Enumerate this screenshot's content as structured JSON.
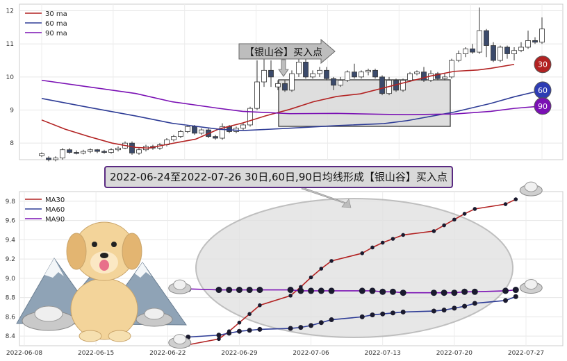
{
  "top_legend": [
    "30 ma",
    "60 ma",
    "90 ma"
  ],
  "bottom_legend": [
    "MA30",
    "MA60",
    "MA90"
  ],
  "buy_label": "【银山谷】买入点",
  "banner": "2022-06-24至2022-07-26 30日,60日,90日均线形成【银山谷】买入点",
  "badges": [
    "30",
    "60",
    "90"
  ],
  "colors": {
    "ma30": "#b22222",
    "ma60": "#2e3c96",
    "ma90": "#7a10b4",
    "badge30": "#b22222",
    "badge60": "#2e3cb4",
    "badge90": "#7a10b4"
  },
  "decorations": [
    "dog-icon",
    "mountain-icon",
    "silver-ingot-icon"
  ],
  "chart_data": [
    {
      "type": "candlestick",
      "ylim": [
        7.5,
        12.2
      ],
      "yticks": [
        8,
        9,
        10,
        11,
        12
      ],
      "grid": true,
      "legend": "top-left",
      "series": [
        {
          "name": "30 ma",
          "points": [
            [
              0,
              8.7
            ],
            [
              22,
              8.42
            ],
            [
              44,
              8.2
            ],
            [
              66,
              8.0
            ],
            [
              88,
              7.87
            ],
            [
              100,
              7.85
            ],
            [
              122,
              7.99
            ],
            [
              144,
              8.12
            ],
            [
              166,
              8.43
            ],
            [
              188,
              8.61
            ],
            [
              210,
              8.83
            ],
            [
              232,
              9.02
            ],
            [
              254,
              9.25
            ],
            [
              276,
              9.41
            ],
            [
              298,
              9.49
            ],
            [
              320,
              9.67
            ],
            [
              342,
              9.85
            ],
            [
              364,
              10.03
            ],
            [
              386,
              10.17
            ],
            [
              408,
              10.21
            ],
            [
              420,
              10.26
            ],
            [
              442,
              10.38
            ]
          ]
        },
        {
          "name": "60 ma",
          "points": [
            [
              0,
              9.35
            ],
            [
              44,
              9.08
            ],
            [
              88,
              8.82
            ],
            [
              122,
              8.6
            ],
            [
              166,
              8.42
            ],
            [
              188,
              8.38
            ],
            [
              232,
              8.45
            ],
            [
              276,
              8.53
            ],
            [
              320,
              8.59
            ],
            [
              342,
              8.68
            ],
            [
              386,
              8.94
            ],
            [
              420,
              9.2
            ],
            [
              442,
              9.4
            ],
            [
              468,
              9.6
            ]
          ]
        },
        {
          "name": "90 ma",
          "points": [
            [
              0,
              9.9
            ],
            [
              44,
              9.7
            ],
            [
              88,
              9.5
            ],
            [
              122,
              9.25
            ],
            [
              166,
              9.05
            ],
            [
              188,
              8.96
            ],
            [
              232,
              8.89
            ],
            [
              276,
              8.9
            ],
            [
              320,
              8.87
            ],
            [
              342,
              8.86
            ],
            [
              386,
              8.88
            ],
            [
              420,
              8.96
            ],
            [
              442,
              9.05
            ],
            [
              468,
              9.12
            ]
          ]
        }
      ],
      "candles": [
        [
          7.62,
          7.68,
          7.58,
          7.72
        ],
        [
          7.55,
          7.5,
          7.45,
          7.6
        ],
        [
          7.5,
          7.55,
          7.45,
          7.6
        ],
        [
          7.55,
          7.8,
          7.5,
          7.85
        ],
        [
          7.8,
          7.72,
          7.68,
          7.85
        ],
        [
          7.72,
          7.7,
          7.66,
          7.78
        ],
        [
          7.7,
          7.75,
          7.66,
          7.8
        ],
        [
          7.75,
          7.8,
          7.7,
          7.84
        ],
        [
          7.8,
          7.75,
          7.7,
          7.82
        ],
        [
          7.75,
          7.72,
          7.68,
          7.8
        ],
        [
          7.72,
          7.8,
          7.68,
          7.85
        ],
        [
          7.8,
          7.85,
          7.75,
          7.9
        ],
        [
          7.85,
          8.0,
          7.82,
          8.05
        ],
        [
          8.0,
          7.7,
          7.65,
          8.05
        ],
        [
          7.7,
          7.8,
          7.65,
          7.85
        ],
        [
          7.8,
          7.9,
          7.75,
          7.95
        ],
        [
          7.9,
          7.85,
          7.8,
          7.95
        ],
        [
          7.85,
          7.95,
          7.8,
          8.0
        ],
        [
          7.95,
          8.1,
          7.9,
          8.15
        ],
        [
          8.1,
          8.2,
          8.05,
          8.25
        ],
        [
          8.2,
          8.35,
          8.15,
          8.4
        ],
        [
          8.35,
          8.5,
          8.3,
          8.55
        ],
        [
          8.5,
          8.3,
          8.25,
          8.55
        ],
        [
          8.3,
          8.4,
          8.25,
          8.45
        ],
        [
          8.4,
          8.2,
          8.15,
          8.45
        ],
        [
          8.2,
          8.15,
          8.1,
          8.25
        ],
        [
          8.15,
          8.5,
          8.1,
          8.6
        ],
        [
          8.5,
          8.35,
          8.3,
          8.55
        ],
        [
          8.35,
          8.45,
          8.3,
          8.5
        ],
        [
          8.45,
          8.55,
          8.4,
          8.6
        ],
        [
          8.55,
          9.05,
          8.5,
          9.1
        ],
        [
          9.05,
          9.85,
          9.0,
          10.5
        ],
        [
          9.85,
          10.2,
          9.7,
          10.6
        ],
        [
          10.2,
          10.0,
          9.7,
          10.5
        ],
        [
          9.7,
          9.8,
          9.6,
          9.9
        ],
        [
          9.8,
          9.6,
          9.55,
          9.9
        ],
        [
          9.6,
          10.1,
          9.55,
          10.2
        ],
        [
          10.1,
          10.45,
          10.0,
          10.55
        ],
        [
          10.45,
          10.0,
          9.95,
          10.55
        ],
        [
          10.0,
          10.1,
          9.95,
          10.2
        ],
        [
          10.1,
          10.2,
          10.0,
          10.3
        ],
        [
          10.2,
          9.95,
          9.9,
          10.3
        ],
        [
          9.95,
          9.75,
          9.6,
          10.0
        ],
        [
          9.75,
          9.9,
          9.7,
          10.0
        ],
        [
          9.9,
          10.15,
          9.85,
          10.2
        ],
        [
          10.15,
          10.0,
          9.95,
          10.4
        ],
        [
          10.0,
          10.15,
          9.95,
          10.2
        ],
        [
          10.15,
          10.2,
          10.05,
          10.25
        ],
        [
          10.2,
          10.0,
          9.95,
          10.25
        ],
        [
          10.0,
          9.5,
          9.45,
          10.05
        ],
        [
          9.5,
          9.9,
          9.45,
          10.0
        ],
        [
          9.9,
          9.6,
          9.55,
          9.95
        ],
        [
          9.6,
          9.9,
          9.55,
          9.95
        ],
        [
          9.9,
          10.1,
          9.85,
          10.15
        ],
        [
          10.1,
          10.15,
          10.05,
          10.2
        ],
        [
          10.15,
          9.9,
          9.85,
          10.3
        ],
        [
          9.9,
          10.1,
          9.85,
          10.2
        ],
        [
          10.1,
          9.95,
          9.9,
          10.15
        ],
        [
          9.95,
          10.0,
          9.9,
          10.1
        ],
        [
          10.0,
          10.5,
          9.95,
          10.55
        ],
        [
          10.5,
          10.7,
          10.45,
          10.8
        ],
        [
          10.7,
          10.85,
          10.6,
          10.9
        ],
        [
          10.85,
          10.75,
          10.7,
          11.0
        ],
        [
          10.75,
          11.4,
          10.7,
          12.1
        ],
        [
          11.4,
          10.95,
          10.6,
          11.45
        ],
        [
          10.95,
          10.5,
          10.45,
          11.05
        ],
        [
          10.5,
          10.9,
          10.45,
          10.95
        ],
        [
          10.9,
          10.7,
          10.55,
          10.95
        ],
        [
          10.7,
          10.8,
          10.5,
          10.9
        ],
        [
          10.8,
          10.9,
          10.75,
          11.05
        ],
        [
          10.9,
          11.1,
          10.85,
          11.4
        ],
        [
          11.1,
          11.05,
          11.0,
          11.2
        ],
        [
          11.05,
          11.45,
          11.0,
          11.8
        ]
      ]
    },
    {
      "type": "line",
      "x": [
        "2022-06-24",
        "2022-06-27",
        "2022-06-28",
        "2022-06-29",
        "2022-06-30",
        "2022-07-01",
        "2022-07-04",
        "2022-07-05",
        "2022-07-06",
        "2022-07-07",
        "2022-07-08",
        "2022-07-11",
        "2022-07-12",
        "2022-07-13",
        "2022-07-14",
        "2022-07-15",
        "2022-07-18",
        "2022-07-19",
        "2022-07-20",
        "2022-07-21",
        "2022-07-22",
        "2022-07-25",
        "2022-07-26"
      ],
      "xticks": [
        "2022-06-08",
        "2022-06-15",
        "2022-06-22",
        "2022-06-29",
        "2022-07-06",
        "2022-07-13",
        "2022-07-20",
        "2022-07-27"
      ],
      "ylim": [
        8.3,
        9.9
      ],
      "yticks": [
        8.4,
        8.6,
        8.8,
        9.0,
        9.2,
        9.4,
        9.6,
        9.8
      ],
      "grid": true,
      "legend": "top-left",
      "series": [
        {
          "name": "MA30",
          "values": [
            8.31,
            8.37,
            8.45,
            8.54,
            8.63,
            8.72,
            8.82,
            8.91,
            9.01,
            9.1,
            9.18,
            9.26,
            9.32,
            9.37,
            9.41,
            9.45,
            9.49,
            9.55,
            9.61,
            9.67,
            9.72,
            9.77,
            9.82
          ]
        },
        {
          "name": "MA60",
          "values": [
            8.39,
            8.41,
            8.43,
            8.45,
            8.46,
            8.47,
            8.48,
            8.49,
            8.51,
            8.54,
            8.57,
            8.6,
            8.62,
            8.63,
            8.64,
            8.65,
            8.66,
            8.67,
            8.69,
            8.71,
            8.74,
            8.77,
            8.81
          ]
        },
        {
          "name": "MA90",
          "values": [
            8.89,
            8.88,
            8.88,
            8.88,
            8.88,
            8.88,
            8.88,
            8.87,
            8.87,
            8.87,
            8.87,
            8.87,
            8.87,
            8.86,
            8.86,
            8.85,
            8.85,
            8.85,
            8.85,
            8.86,
            8.86,
            8.87,
            8.88
          ]
        }
      ]
    }
  ]
}
